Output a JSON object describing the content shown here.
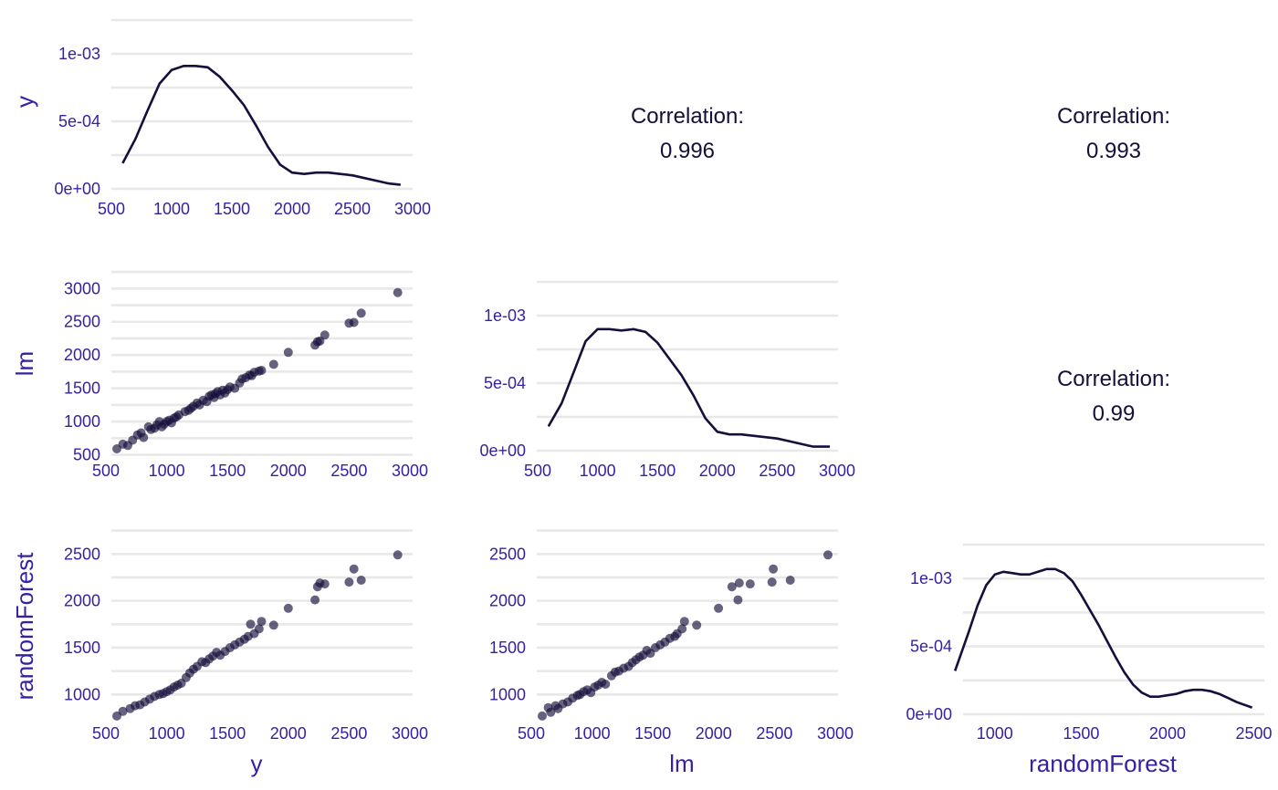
{
  "colors": {
    "text": "#371ea3",
    "ink": "#160e3b",
    "grid": "#e8e8e8"
  },
  "variables": [
    "y",
    "lm",
    "randomForest"
  ],
  "correlation_label": "Correlation:",
  "chart_data": [
    {
      "type": "line",
      "panel": "y-y density",
      "xlim": [
        500,
        3000
      ],
      "ylim": [
        0,
        0.00125
      ],
      "xticks": [
        "500",
        "1000",
        "1500",
        "2000",
        "2500",
        "3000"
      ],
      "xtick_values": [
        500,
        1000,
        1500,
        2000,
        2500,
        3000
      ],
      "yticks": [
        "0e+00",
        "5e-04",
        "1e-03"
      ],
      "ytick_values": [
        0,
        0.0005,
        0.001
      ],
      "ylabel": "y",
      "xlabel": "",
      "x": [
        594,
        700,
        800,
        900,
        1000,
        1100,
        1200,
        1300,
        1400,
        1500,
        1600,
        1700,
        1800,
        1900,
        2000,
        2100,
        2200,
        2300,
        2400,
        2500,
        2600,
        2700,
        2800,
        2900
      ],
      "y": [
        0.00019,
        0.00037,
        0.00058,
        0.00078,
        0.00088,
        0.00091,
        0.00091,
        0.0009,
        0.00083,
        0.00073,
        0.00062,
        0.00047,
        0.00031,
        0.00018,
        0.00012,
        0.00011,
        0.00012,
        0.00012,
        0.00011,
        0.0001,
        8e-05,
        6e-05,
        4e-05,
        3e-05
      ]
    },
    {
      "type": "table",
      "panel": "y-lm correlation",
      "value": "0.996"
    },
    {
      "type": "table",
      "panel": "y-randomForest correlation",
      "value": "0.993"
    },
    {
      "type": "scatter",
      "panel": "lm vs y",
      "xlim": [
        500,
        3000
      ],
      "ylim": [
        480,
        3100
      ],
      "xticks": [
        "500",
        "1000",
        "1500",
        "2000",
        "2500",
        "3000"
      ],
      "xtick_values": [
        500,
        1000,
        1500,
        2000,
        2500,
        3000
      ],
      "yticks": [
        "500",
        "1000",
        "1500",
        "2000",
        "2500",
        "3000"
      ],
      "ytick_values": [
        500,
        1000,
        1500,
        2000,
        2500,
        3000
      ],
      "ylabel": "lm",
      "xlabel": "",
      "x": [
        590,
        640,
        680,
        720,
        760,
        790,
        810,
        850,
        870,
        900,
        920,
        940,
        960,
        980,
        1000,
        1020,
        1040,
        1060,
        1080,
        1100,
        1150,
        1180,
        1200,
        1220,
        1250,
        1270,
        1300,
        1330,
        1350,
        1370,
        1390,
        1400,
        1420,
        1440,
        1460,
        1480,
        1500,
        1520,
        1560,
        1600,
        1620,
        1650,
        1680,
        1700,
        1720,
        1760,
        1780,
        1880,
        2000,
        2220,
        2240,
        2260,
        2300,
        2500,
        2540,
        2600,
        2900
      ],
      "y": [
        590,
        660,
        640,
        720,
        800,
        830,
        760,
        920,
        880,
        900,
        950,
        1000,
        920,
        960,
        1000,
        1020,
        980,
        1050,
        1070,
        1100,
        1150,
        1170,
        1200,
        1230,
        1280,
        1250,
        1320,
        1300,
        1380,
        1400,
        1360,
        1420,
        1450,
        1400,
        1470,
        1430,
        1480,
        1520,
        1500,
        1580,
        1640,
        1660,
        1700,
        1690,
        1740,
        1760,
        1770,
        1860,
        2040,
        2150,
        2200,
        2210,
        2300,
        2480,
        2490,
        2630,
        2940
      ]
    },
    {
      "type": "line",
      "panel": "lm-lm density",
      "xlim": [
        500,
        3000
      ],
      "ylim": [
        0,
        0.00125
      ],
      "xticks": [
        "500",
        "1000",
        "1500",
        "2000",
        "2500",
        "3000"
      ],
      "xtick_values": [
        500,
        1000,
        1500,
        2000,
        2500,
        3000
      ],
      "yticks": [
        "0e+00",
        "5e-04",
        "1e-03"
      ],
      "ytick_values": [
        0,
        0.0005,
        0.001
      ],
      "ylabel": "",
      "xlabel": "",
      "x": [
        590,
        700,
        800,
        900,
        1000,
        1100,
        1200,
        1300,
        1400,
        1500,
        1600,
        1700,
        1800,
        1900,
        2000,
        2100,
        2200,
        2300,
        2400,
        2500,
        2600,
        2700,
        2800,
        2940
      ],
      "y": [
        0.00018,
        0.00035,
        0.00058,
        0.00081,
        0.0009,
        0.0009,
        0.00089,
        0.0009,
        0.00088,
        0.0008,
        0.00068,
        0.00056,
        0.00041,
        0.00024,
        0.00014,
        0.00012,
        0.00012,
        0.00011,
        0.0001,
        9e-05,
        7e-05,
        5e-05,
        3e-05,
        3e-05
      ]
    },
    {
      "type": "table",
      "panel": "lm-randomForest correlation",
      "value": "0.99"
    },
    {
      "type": "scatter",
      "panel": "randomForest vs y",
      "xlim": [
        500,
        3000
      ],
      "ylim": [
        740,
        2600
      ],
      "xticks": [
        "500",
        "1000",
        "1500",
        "2000",
        "2500",
        "3000"
      ],
      "xtick_values": [
        500,
        1000,
        1500,
        2000,
        2500,
        3000
      ],
      "yticks": [
        "1000",
        "1500",
        "2000",
        "2500"
      ],
      "ytick_values": [
        1000,
        1500,
        2000,
        2500
      ],
      "ylabel": "randomForest",
      "xlabel": "y",
      "x": [
        590,
        640,
        700,
        740,
        780,
        820,
        860,
        900,
        940,
        970,
        1000,
        1030,
        1060,
        1090,
        1120,
        1160,
        1190,
        1220,
        1250,
        1290,
        1320,
        1350,
        1380,
        1410,
        1440,
        1480,
        1520,
        1560,
        1600,
        1640,
        1670,
        1690,
        1720,
        1760,
        1780,
        1880,
        2000,
        2220,
        2240,
        2260,
        2300,
        2500,
        2540,
        2600,
        2900
      ],
      "y": [
        770,
        820,
        850,
        880,
        890,
        920,
        950,
        980,
        1000,
        1010,
        1030,
        1050,
        1080,
        1100,
        1120,
        1180,
        1230,
        1270,
        1300,
        1350,
        1340,
        1380,
        1410,
        1450,
        1420,
        1460,
        1500,
        1530,
        1560,
        1590,
        1620,
        1750,
        1650,
        1700,
        1780,
        1740,
        1920,
        2010,
        2150,
        2190,
        2180,
        2200,
        2340,
        2220,
        2490
      ]
    },
    {
      "type": "scatter",
      "panel": "randomForest vs lm",
      "xlim": [
        500,
        3000
      ],
      "ylim": [
        740,
        2600
      ],
      "xticks": [
        "500",
        "1000",
        "1500",
        "2000",
        "2500",
        "3000"
      ],
      "xtick_values": [
        500,
        1000,
        1500,
        2000,
        2500,
        3000
      ],
      "yticks": [
        "1000",
        "1500",
        "2000",
        "2500"
      ],
      "ytick_values": [
        1000,
        1500,
        2000,
        2500
      ],
      "ylabel": "",
      "xlabel": "lm",
      "x": [
        590,
        640,
        660,
        700,
        720,
        760,
        800,
        840,
        880,
        900,
        930,
        960,
        990,
        1020,
        1050,
        1080,
        1110,
        1160,
        1190,
        1220,
        1260,
        1300,
        1330,
        1360,
        1390,
        1420,
        1450,
        1480,
        1520,
        1560,
        1600,
        1640,
        1680,
        1700,
        1740,
        1760,
        1860,
        2040,
        2150,
        2200,
        2210,
        2300,
        2480,
        2490,
        2630,
        2940
      ],
      "y": [
        770,
        860,
        810,
        880,
        850,
        900,
        920,
        960,
        990,
        1000,
        1030,
        1050,
        1020,
        1080,
        1100,
        1130,
        1110,
        1200,
        1240,
        1250,
        1280,
        1300,
        1340,
        1370,
        1400,
        1420,
        1470,
        1440,
        1500,
        1530,
        1560,
        1600,
        1620,
        1650,
        1700,
        1780,
        1740,
        1920,
        2150,
        2010,
        2190,
        2180,
        2200,
        2340,
        2220,
        2490
      ]
    },
    {
      "type": "line",
      "panel": "randomForest-randomForest density",
      "xlim": [
        700,
        2550
      ],
      "ylim": [
        0,
        0.00125
      ],
      "xticks": [
        "1000",
        "1500",
        "2000",
        "2500"
      ],
      "xtick_values": [
        1000,
        1500,
        2000,
        2500
      ],
      "yticks": [
        "0e+00",
        "5e-04",
        "1e-03"
      ],
      "ytick_values": [
        0,
        0.0005,
        0.001
      ],
      "ylabel": "",
      "xlabel": "randomForest",
      "x": [
        770,
        850,
        900,
        950,
        1000,
        1050,
        1100,
        1150,
        1200,
        1250,
        1300,
        1350,
        1400,
        1450,
        1500,
        1550,
        1600,
        1650,
        1700,
        1750,
        1800,
        1850,
        1900,
        1950,
        2000,
        2050,
        2100,
        2150,
        2200,
        2250,
        2300,
        2350,
        2400,
        2490
      ],
      "y": [
        0.00032,
        0.00061,
        0.0008,
        0.00095,
        0.00103,
        0.00105,
        0.00104,
        0.00103,
        0.00103,
        0.00105,
        0.00107,
        0.00107,
        0.00104,
        0.00098,
        0.00088,
        0.00077,
        0.00066,
        0.00054,
        0.00042,
        0.00031,
        0.00022,
        0.00016,
        0.00013,
        0.00013,
        0.00014,
        0.00015,
        0.00017,
        0.00018,
        0.00018,
        0.00017,
        0.00015,
        0.00012,
        9e-05,
        5e-05
      ]
    }
  ]
}
